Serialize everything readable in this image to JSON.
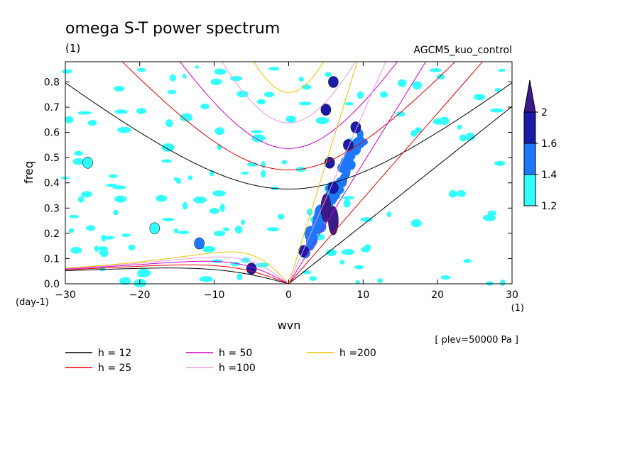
{
  "chart_data": {
    "type": "heatmap",
    "title": "omega S-T power spectrum",
    "subtitle": "(1)",
    "run_label": "AGCM5_kuo_control",
    "xlabel": "wvn",
    "ylabel": "freq",
    "x_unit": "(1)",
    "y_unit": "(day-1)",
    "level_note": "[ plev=50000 Pa ]",
    "xlim": [
      -30,
      30
    ],
    "ylim": [
      0,
      0.88
    ],
    "x_ticks": [
      -30,
      -20,
      -10,
      0,
      10,
      20,
      30
    ],
    "y_ticks": [
      0.0,
      0.1,
      0.2,
      0.3,
      0.4,
      0.5,
      0.6,
      0.7,
      0.8
    ],
    "colorbar": {
      "levels": [
        1.2,
        1.4,
        1.6,
        2
      ],
      "colors": [
        "#33ffff",
        "#1e78ff",
        "#1a1aa8",
        "#3d1a8c"
      ]
    },
    "legend": [
      {
        "label": "h = 12",
        "h": 12,
        "color": "#000000"
      },
      {
        "label": "h = 25",
        "h": 25,
        "color": "#e60000"
      },
      {
        "label": "h = 50",
        "h": 50,
        "color": "#cc00cc"
      },
      {
        "label": "h =100",
        "h": 100,
        "color": "#e699e6"
      },
      {
        "label": "h =200",
        "h": 200,
        "color": "#f0c000"
      }
    ],
    "contour_regions": [
      {
        "k": 5,
        "f": 0.3,
        "level": 2
      },
      {
        "k": 6,
        "f": 0.25,
        "level": 2
      },
      {
        "k": 6,
        "f": 0.38,
        "level": 1.6
      },
      {
        "k": 5.5,
        "f": 0.48,
        "level": 1.6
      },
      {
        "k": 5,
        "f": 0.69,
        "level": 1.6
      },
      {
        "k": 6,
        "f": 0.8,
        "level": 1.6
      },
      {
        "k": 2,
        "f": 0.13,
        "level": 1.6
      },
      {
        "k": 8,
        "f": 0.55,
        "level": 1.6
      },
      {
        "k": 9,
        "f": 0.62,
        "level": 1.6
      },
      {
        "k": -5,
        "f": 0.06,
        "level": 1.6
      },
      {
        "k": -18,
        "f": 0.22,
        "level": 1.2
      },
      {
        "k": -12,
        "f": 0.16,
        "level": 1.4
      },
      {
        "k": -27,
        "f": 0.48,
        "level": 1.2
      }
    ]
  }
}
